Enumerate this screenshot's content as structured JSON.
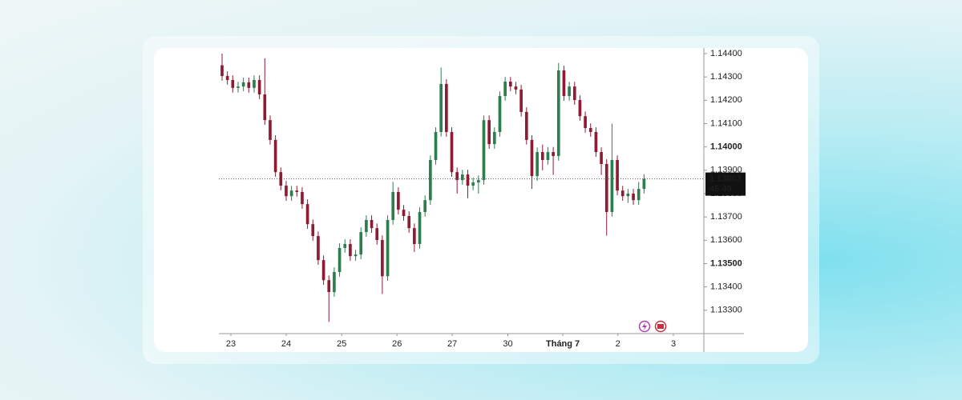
{
  "chart_data": {
    "type": "candlestick",
    "x": [
      0,
      1,
      2,
      3,
      4,
      5,
      6,
      7,
      8,
      9,
      10,
      11,
      12,
      13,
      14,
      15,
      16,
      17,
      18,
      19,
      20,
      21,
      22,
      23,
      24,
      25,
      26,
      27,
      28,
      29,
      30,
      31,
      32,
      33,
      34,
      35,
      36,
      37,
      38,
      39,
      40,
      41,
      42,
      43,
      44,
      45,
      46,
      47,
      48,
      49,
      50,
      51,
      52,
      53,
      54,
      55,
      56,
      57,
      58,
      59,
      60,
      61,
      62,
      63,
      64,
      65,
      66,
      67,
      68,
      69,
      70,
      71,
      72,
      73,
      74,
      75,
      76,
      77,
      78,
      79
    ],
    "open": [
      1.1435,
      1.14304,
      1.14287,
      1.14253,
      1.14259,
      1.14277,
      1.14253,
      1.14287,
      1.14225,
      1.14115,
      1.1403,
      1.13892,
      1.13834,
      1.13789,
      1.13813,
      1.13807,
      1.13755,
      1.13669,
      1.13618,
      1.13515,
      1.13429,
      1.13378,
      1.13464,
      1.13567,
      1.13584,
      1.13532,
      1.13539,
      1.13635,
      1.13687,
      1.13652,
      1.13601,
      1.13446,
      1.13687,
      1.13807,
      1.13731,
      1.13704,
      1.13652,
      1.13584,
      1.13721,
      1.13772,
      1.13944,
      1.14064,
      1.1427,
      1.14064,
      1.13892,
      1.13858,
      1.13882,
      1.13834,
      1.13848,
      1.13858,
      1.14115,
      1.14012,
      1.14064,
      1.14218,
      1.1428,
      1.14259,
      1.14246,
      1.1415,
      1.1403,
      1.13875,
      1.13978,
      1.13944,
      1.13978,
      1.13961,
      1.14328,
      1.14218,
      1.14259,
      1.14201,
      1.14132,
      1.14081,
      1.14064,
      1.13978,
      1.13927,
      1.13721,
      1.13944,
      1.13813,
      1.13789,
      1.138,
      1.13772,
      1.1382
    ],
    "high": [
      1.144,
      1.14324,
      1.14307,
      1.14279,
      1.14297,
      1.14297,
      1.14307,
      1.14307,
      1.1438,
      1.14135,
      1.1405,
      1.13912,
      1.13854,
      1.13833,
      1.13833,
      1.13827,
      1.13775,
      1.13689,
      1.13638,
      1.13535,
      1.13449,
      1.13484,
      1.13587,
      1.13604,
      1.13604,
      1.13559,
      1.13655,
      1.13707,
      1.13707,
      1.13672,
      1.13621,
      1.13707,
      1.1385,
      1.13827,
      1.13751,
      1.13724,
      1.13672,
      1.13741,
      1.13792,
      1.13964,
      1.14084,
      1.1434,
      1.1429,
      1.14084,
      1.13912,
      1.13902,
      1.13902,
      1.13868,
      1.13878,
      1.14135,
      1.14135,
      1.14084,
      1.14238,
      1.143,
      1.143,
      1.14279,
      1.14266,
      1.1417,
      1.1405,
      1.13998,
      1.1401,
      1.14,
      1.14,
      1.1436,
      1.14348,
      1.14279,
      1.14279,
      1.14221,
      1.14152,
      1.14101,
      1.14084,
      1.13998,
      1.13947,
      1.141,
      1.13964,
      1.13833,
      1.1382,
      1.1382,
      1.1385,
      1.13883
    ],
    "low": [
      1.14284,
      1.14267,
      1.14233,
      1.14233,
      1.14239,
      1.14233,
      1.14233,
      1.14205,
      1.14095,
      1.1401,
      1.13872,
      1.13814,
      1.13769,
      1.13769,
      1.13787,
      1.13735,
      1.13649,
      1.13598,
      1.13495,
      1.13409,
      1.1325,
      1.13358,
      1.13444,
      1.13547,
      1.13512,
      1.13512,
      1.13519,
      1.13615,
      1.13632,
      1.13581,
      1.1337,
      1.13426,
      1.13667,
      1.13711,
      1.13684,
      1.13632,
      1.1355,
      1.13564,
      1.13701,
      1.13752,
      1.13924,
      1.14044,
      1.14044,
      1.13872,
      1.138,
      1.13838,
      1.1378,
      1.13814,
      1.138,
      1.13838,
      1.13992,
      1.13992,
      1.14044,
      1.14198,
      1.14239,
      1.14226,
      1.1413,
      1.1401,
      1.1382,
      1.13855,
      1.139,
      1.13924,
      1.1388,
      1.13941,
      1.14198,
      1.14198,
      1.14181,
      1.14112,
      1.14061,
      1.14044,
      1.13958,
      1.1388,
      1.1362,
      1.13701,
      1.13793,
      1.13769,
      1.1376,
      1.13752,
      1.13752,
      1.138
    ],
    "close": [
      1.14304,
      1.14287,
      1.14253,
      1.14259,
      1.14277,
      1.14253,
      1.14287,
      1.14225,
      1.14115,
      1.1403,
      1.13892,
      1.13834,
      1.13789,
      1.13813,
      1.13807,
      1.13755,
      1.13669,
      1.13618,
      1.13515,
      1.13429,
      1.13378,
      1.13464,
      1.13567,
      1.13584,
      1.13532,
      1.13539,
      1.13635,
      1.13687,
      1.13652,
      1.13601,
      1.13446,
      1.13687,
      1.13807,
      1.13731,
      1.13704,
      1.13652,
      1.13584,
      1.13721,
      1.13772,
      1.13944,
      1.14064,
      1.1427,
      1.14064,
      1.13892,
      1.13858,
      1.13882,
      1.13834,
      1.13848,
      1.13858,
      1.14115,
      1.14012,
      1.14064,
      1.14218,
      1.1428,
      1.14259,
      1.14246,
      1.1415,
      1.1403,
      1.13875,
      1.13978,
      1.13944,
      1.13978,
      1.13961,
      1.14328,
      1.14218,
      1.14259,
      1.14201,
      1.14132,
      1.14081,
      1.14064,
      1.13978,
      1.13927,
      1.13721,
      1.13944,
      1.13813,
      1.13789,
      1.138,
      1.13772,
      1.1382,
      1.13863
    ],
    "up_color": "#2e7d4f",
    "down_color": "#8b1c33",
    "xlim": [
      -0.6,
      90.2
    ],
    "xticks": [
      {
        "value": 1.65,
        "label": "23"
      },
      {
        "value": 12.0,
        "label": "24"
      },
      {
        "value": 22.4,
        "label": "25"
      },
      {
        "value": 32.75,
        "label": "26"
      },
      {
        "value": 43.1,
        "label": "27"
      },
      {
        "value": 53.5,
        "label": "30"
      },
      {
        "value": 63.8,
        "label": "Tháng 7",
        "bold": true
      },
      {
        "value": 74.1,
        "label": "2"
      },
      {
        "value": 84.5,
        "label": "3"
      }
    ],
    "ylim": [
      1.132,
      1.14424
    ],
    "yticks": [
      {
        "value": 1.144,
        "label": "1.14400"
      },
      {
        "value": 1.143,
        "label": "1.14300"
      },
      {
        "value": 1.142,
        "label": "1.14200"
      },
      {
        "value": 1.141,
        "label": "1.14100"
      },
      {
        "value": 1.14,
        "label": "1.14000",
        "bold": true
      },
      {
        "value": 1.139,
        "label": "1.13900"
      },
      {
        "value": 1.138,
        "label": "1.13800"
      },
      {
        "value": 1.137,
        "label": "1.13700"
      },
      {
        "value": 1.136,
        "label": "1.13600"
      },
      {
        "value": 1.135,
        "label": "1.13500",
        "bold": true
      },
      {
        "value": 1.134,
        "label": "1.13400"
      },
      {
        "value": 1.133,
        "label": "1.13300"
      }
    ],
    "current_price": {
      "value": 1.13863,
      "label": "1.13863"
    },
    "countdown": "45:49",
    "grid": false
  }
}
